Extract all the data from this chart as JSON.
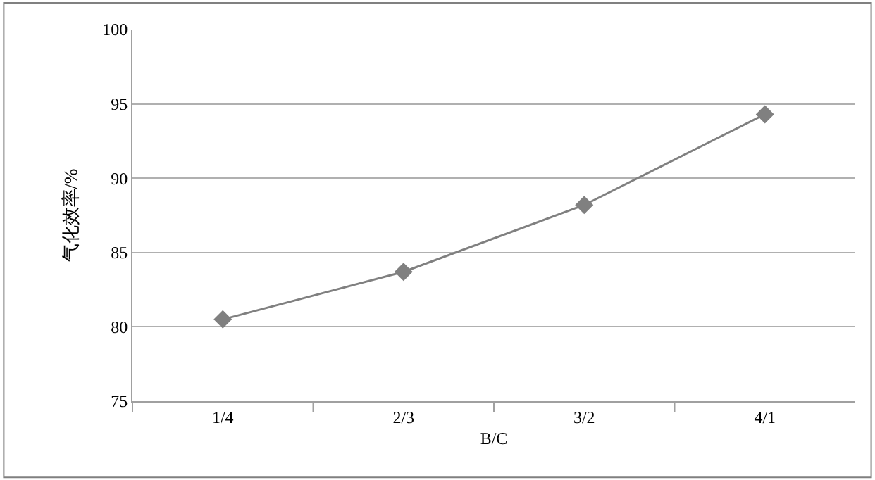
{
  "chart_data": {
    "type": "line",
    "xlabel": "B/C",
    "ylabel": "气化效率/%",
    "categories": [
      "1/4",
      "2/3",
      "3/2",
      "4/1"
    ],
    "series": [
      {
        "color": "#808080",
        "values": [
          80.5,
          83.7,
          88.2,
          94.3
        ]
      }
    ],
    "ylim": [
      75,
      100
    ],
    "yticks": [
      75,
      80,
      85,
      90,
      95,
      100
    ],
    "grid": "y",
    "marker": "diamond",
    "line_style": "solid"
  }
}
